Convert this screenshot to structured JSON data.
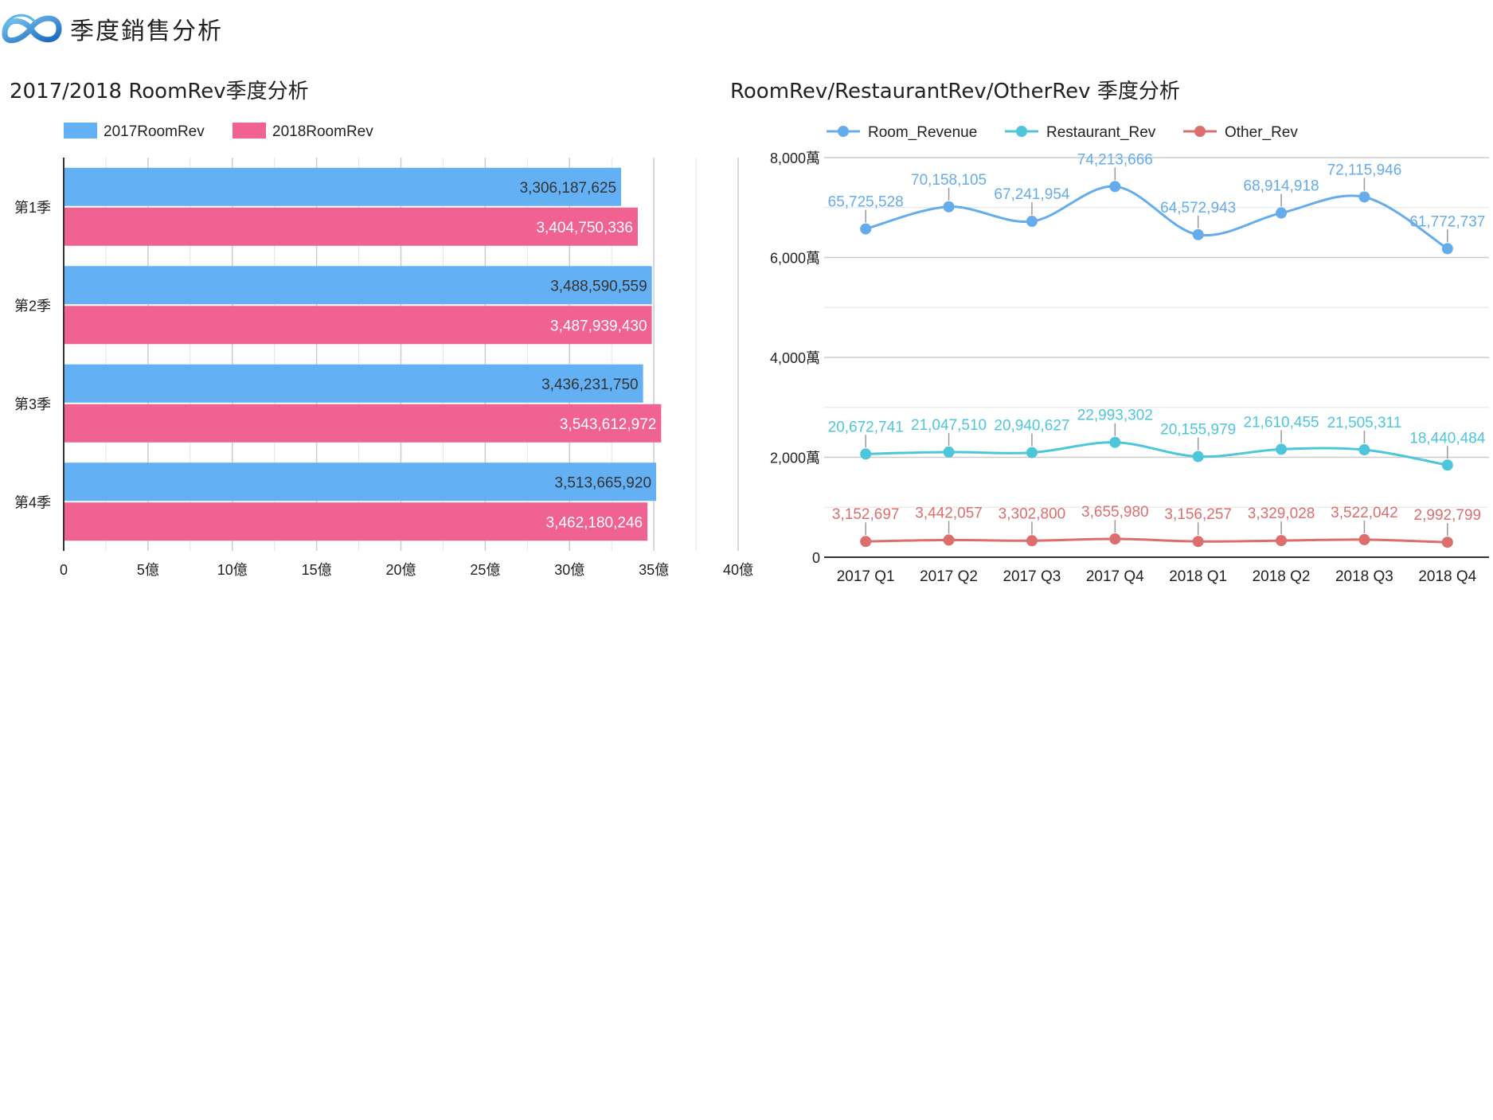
{
  "header": {
    "title": "季度銷售分析"
  },
  "colors": {
    "series_2017": "#64b0f4",
    "series_2018": "#f06292",
    "room_revenue": "#64acea",
    "restaurant_rev": "#4dc6dc",
    "other_rev": "#dc6e6e",
    "grid": "#d9d9d9",
    "axis": "#333333"
  },
  "chart_data": [
    {
      "type": "bar",
      "orientation": "horizontal",
      "title": "2017/2018 RoomRev季度分析",
      "categories": [
        "第1季",
        "第2季",
        "第3季",
        "第4季"
      ],
      "series": [
        {
          "name": "2017RoomRev",
          "values": [
            3306187625,
            3488590559,
            3436231750,
            3513665920
          ],
          "labels": [
            "3,306,187,625",
            "3,488,590,559",
            "3,436,231,750",
            "3,513,665,920"
          ]
        },
        {
          "name": "2018RoomRev",
          "values": [
            3404750336,
            3487939430,
            3543612972,
            3462180246
          ],
          "labels": [
            "3,404,750,336",
            "3,487,939,430",
            "3,543,612,972",
            "3,462,180,246"
          ]
        }
      ],
      "xlim": [
        0,
        4000000000
      ],
      "xticks": [
        0,
        500000000,
        1000000000,
        1500000000,
        2000000000,
        2500000000,
        3000000000,
        3500000000,
        4000000000
      ],
      "xtick_labels": [
        "0",
        "5億",
        "10億",
        "15億",
        "20億",
        "25億",
        "30億",
        "35億",
        "40億"
      ],
      "legend": "top-left",
      "grid": true
    },
    {
      "type": "line",
      "title": "RoomRev/RestaurantRev/OtherRev 季度分析",
      "categories": [
        "2017 Q1",
        "2017 Q2",
        "2017 Q3",
        "2017 Q4",
        "2018 Q1",
        "2018 Q2",
        "2018 Q3",
        "2018 Q4"
      ],
      "series": [
        {
          "name": "Room_Revenue",
          "values": [
            65725528,
            70158105,
            67241954,
            74213666,
            64572943,
            68914918,
            72115946,
            61772737
          ],
          "labels": [
            "65,725,528",
            "70,158,105",
            "67,241,954",
            "74,213,666",
            "64,572,943",
            "68,914,918",
            "72,115,946",
            "61,772,737"
          ]
        },
        {
          "name": "Restaurant_Rev",
          "values": [
            20672741,
            21047510,
            20940627,
            22993302,
            20155979,
            21610455,
            21505311,
            18440484
          ],
          "labels": [
            "20,672,741",
            "21,047,510",
            "20,940,627",
            "22,993,302",
            "20,155,979",
            "21,610,455",
            "21,505,311",
            "18,440,484"
          ]
        },
        {
          "name": "Other_Rev",
          "values": [
            3152697,
            3442057,
            3302800,
            3655980,
            3156257,
            3329028,
            3522042,
            2992799
          ],
          "labels": [
            "3,152,697",
            "3,442,057",
            "3,302,800",
            "3,655,980",
            "3,156,257",
            "3,329,028",
            "3,522,042",
            "2,992,799"
          ]
        }
      ],
      "ylim": [
        0,
        80000000
      ],
      "yticks": [
        0,
        20000000,
        40000000,
        60000000,
        80000000
      ],
      "ytick_labels": [
        "0",
        "2,000萬",
        "4,000萬",
        "6,000萬",
        "8,000萬"
      ],
      "legend": "top-left",
      "grid": true,
      "smooth": true
    }
  ]
}
